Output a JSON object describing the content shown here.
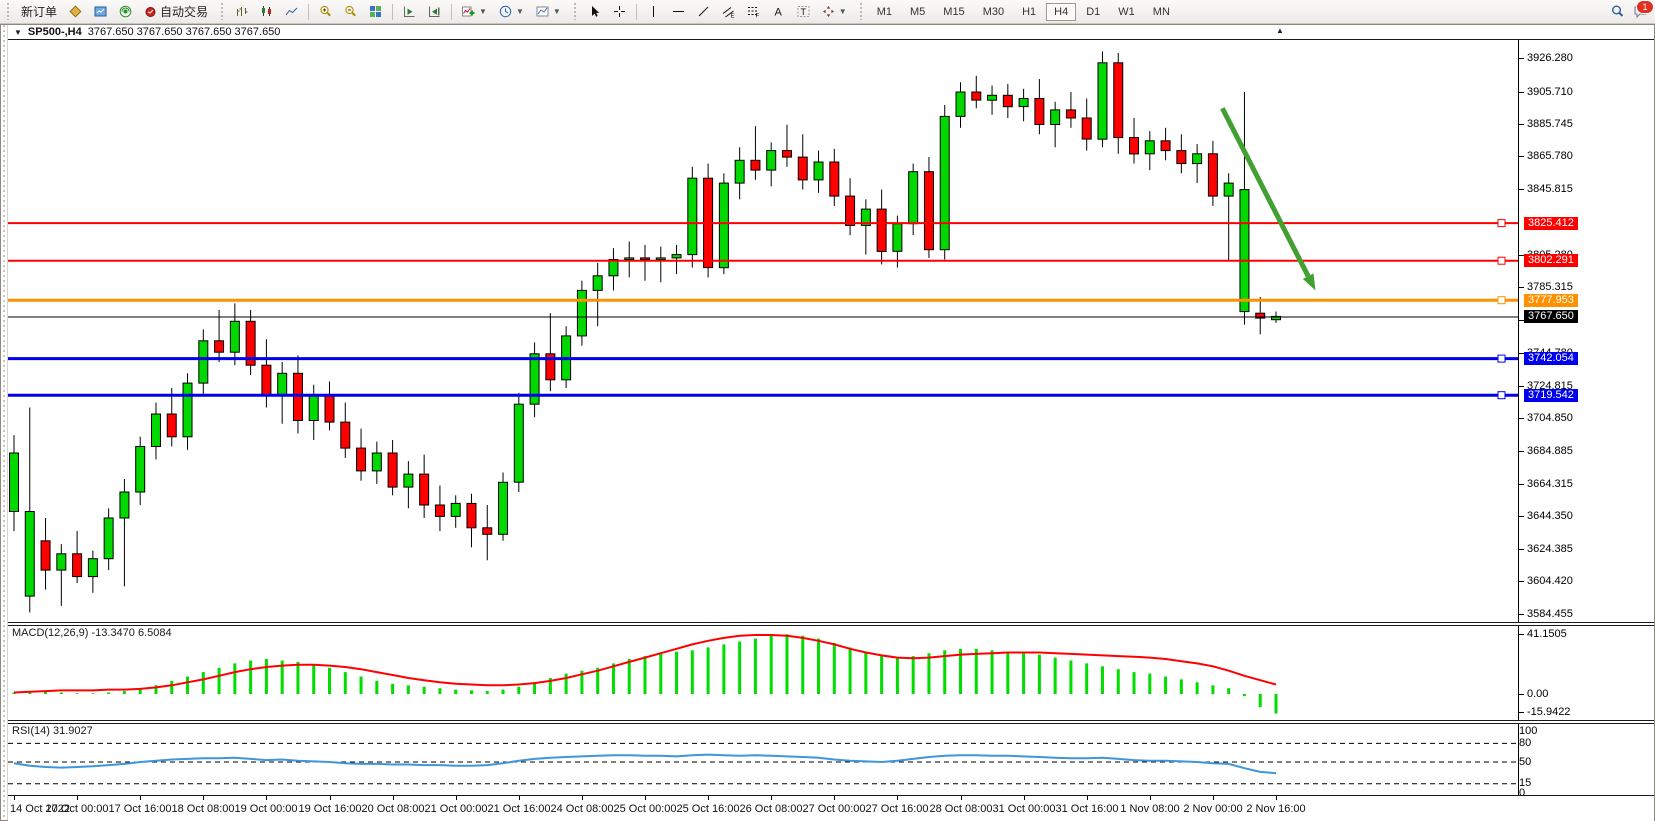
{
  "toolbar": {
    "new_order_label": "新订单",
    "auto_trading_label": "自动交易",
    "timeframes": [
      "M1",
      "M5",
      "M15",
      "M30",
      "H1",
      "H4",
      "D1",
      "W1",
      "MN"
    ],
    "active_timeframe": "H4",
    "notification_badge": "1",
    "icons": [
      "chart-symbols-icon",
      "market-watch-icon",
      "signals-icon",
      "auto-trading-icon",
      "bar-chart-icon",
      "candlestick-chart-icon",
      "line-chart-icon",
      "zoom-in-icon",
      "zoom-out-icon",
      "tile-windows-icon",
      "auto-scroll-icon",
      "chart-shift-icon",
      "add-indicator-icon",
      "periods-clock-icon",
      "template-icon",
      "cursor-icon",
      "crosshair-icon",
      "vertical-line-icon",
      "horizontal-line-icon",
      "trendline-icon",
      "channel-icon",
      "fibonacci-icon",
      "text-icon",
      "text-label-icon",
      "arrows-icon",
      "search-icon",
      "chat-icon"
    ]
  },
  "chart": {
    "symbol_period": "SP500-,H4",
    "ohlc_text": "3767.650 3767.650 3767.650 3767.650",
    "dropdown_glyph": "▼",
    "marker_glyph": "▲"
  },
  "price_axis": {
    "ticks": [
      {
        "label": "3926.280",
        "value": 3926.28
      },
      {
        "label": "3905.710",
        "value": 3905.71
      },
      {
        "label": "3885.745",
        "value": 3885.745
      },
      {
        "label": "3865.780",
        "value": 3865.78
      },
      {
        "label": "3845.815",
        "value": 3845.815
      },
      {
        "label": "3805.280",
        "value": 3805.28
      },
      {
        "label": "3785.315",
        "value": 3785.315
      },
      {
        "label": "3765.350",
        "value": 3765.35
      },
      {
        "label": "3744.780",
        "value": 3744.78
      },
      {
        "label": "3724.815",
        "value": 3724.815
      },
      {
        "label": "3704.850",
        "value": 3704.85
      },
      {
        "label": "3684.885",
        "value": 3684.885
      },
      {
        "label": "3664.315",
        "value": 3664.315
      },
      {
        "label": "3644.350",
        "value": 3644.35
      },
      {
        "label": "3624.385",
        "value": 3624.385
      },
      {
        "label": "3604.420",
        "value": 3604.42
      },
      {
        "label": "3584.455",
        "value": 3584.455
      }
    ]
  },
  "macd_panel": {
    "label": "MACD(12,26,9)",
    "main": "-13.3470",
    "signal": "6.5084",
    "axis": [
      {
        "label": "41.1505",
        "value": 41.1505
      },
      {
        "label": "0.00",
        "value": 0
      },
      {
        "label": "-15.9422",
        "value": -15.9422
      }
    ]
  },
  "rsi_panel": {
    "label": "RSI(14)",
    "value": "31.9027",
    "axis": [
      {
        "label": "100",
        "value": 100
      },
      {
        "label": "80",
        "value": 80
      },
      {
        "label": "50",
        "value": 50
      },
      {
        "label": "15",
        "value": 15
      },
      {
        "label": "0",
        "value": 0
      }
    ]
  },
  "chart_data": {
    "type": "candlestick",
    "symbol": "SP500-",
    "timeframe": "H4",
    "price_range": [
      3580,
      3938
    ],
    "x_labels": [
      "14 Oct 2022",
      "17 Oct 00:00",
      "17 Oct 16:00",
      "18 Oct 08:00",
      "19 Oct 00:00",
      "19 Oct 16:00",
      "20 Oct 08:00",
      "21 Oct 00:00",
      "21 Oct 16:00",
      "24 Oct 08:00",
      "25 Oct 00:00",
      "25 Oct 16:00",
      "26 Oct 08:00",
      "27 Oct 00:00",
      "27 Oct 16:00",
      "28 Oct 08:00",
      "31 Oct 00:00",
      "31 Oct 16:00",
      "1 Nov 08:00",
      "2 Nov 00:00",
      "2 Nov 16:00"
    ],
    "candles_per_label": 4,
    "candles": [
      [
        3648,
        3695,
        3636,
        3684
      ],
      [
        3596,
        3712,
        3586,
        3648
      ],
      [
        3630,
        3644,
        3600,
        3612
      ],
      [
        3612,
        3628,
        3590,
        3622
      ],
      [
        3622,
        3636,
        3604,
        3608
      ],
      [
        3608,
        3624,
        3598,
        3619
      ],
      [
        3619,
        3650,
        3612,
        3644
      ],
      [
        3644,
        3668,
        3602,
        3660
      ],
      [
        3660,
        3694,
        3652,
        3688
      ],
      [
        3688,
        3715,
        3680,
        3708
      ],
      [
        3708,
        3724,
        3688,
        3694
      ],
      [
        3694,
        3733,
        3686,
        3727
      ],
      [
        3727,
        3760,
        3720,
        3753
      ],
      [
        3753,
        3772,
        3740,
        3746
      ],
      [
        3746,
        3776,
        3738,
        3765
      ],
      [
        3765,
        3772,
        3732,
        3738
      ],
      [
        3738,
        3754,
        3712,
        3720
      ],
      [
        3720,
        3740,
        3702,
        3733
      ],
      [
        3733,
        3744,
        3696,
        3704
      ],
      [
        3704,
        3726,
        3692,
        3719
      ],
      [
        3719,
        3728,
        3698,
        3703
      ],
      [
        3703,
        3715,
        3681,
        3687
      ],
      [
        3687,
        3699,
        3667,
        3673
      ],
      [
        3673,
        3691,
        3665,
        3684
      ],
      [
        3684,
        3692,
        3658,
        3663
      ],
      [
        3663,
        3679,
        3650,
        3671
      ],
      [
        3671,
        3683,
        3644,
        3652
      ],
      [
        3652,
        3664,
        3636,
        3645
      ],
      [
        3645,
        3658,
        3638,
        3653
      ],
      [
        3653,
        3659,
        3626,
        3638
      ],
      [
        3638,
        3652,
        3618,
        3634
      ],
      [
        3634,
        3672,
        3630,
        3666
      ],
      [
        3666,
        3721,
        3660,
        3714
      ],
      [
        3714,
        3752,
        3706,
        3745
      ],
      [
        3745,
        3770,
        3722,
        3729
      ],
      [
        3729,
        3762,
        3724,
        3756
      ],
      [
        3756,
        3790,
        3750,
        3784
      ],
      [
        3784,
        3801,
        3762,
        3793
      ],
      [
        3793,
        3810,
        3784,
        3803
      ],
      [
        3803,
        3814,
        3792,
        3804
      ],
      [
        3804,
        3812,
        3790,
        3803
      ],
      [
        3803,
        3811,
        3789,
        3804
      ],
      [
        3804,
        3812,
        3794,
        3806
      ],
      [
        3806,
        3860,
        3798,
        3853
      ],
      [
        3853,
        3862,
        3792,
        3798
      ],
      [
        3798,
        3856,
        3794,
        3850
      ],
      [
        3850,
        3872,
        3840,
        3864
      ],
      [
        3864,
        3885,
        3852,
        3858
      ],
      [
        3858,
        3875,
        3848,
        3870
      ],
      [
        3870,
        3886,
        3860,
        3866
      ],
      [
        3866,
        3880,
        3846,
        3852
      ],
      [
        3852,
        3870,
        3844,
        3863
      ],
      [
        3863,
        3871,
        3836,
        3842
      ],
      [
        3842,
        3853,
        3818,
        3824
      ],
      [
        3824,
        3840,
        3806,
        3834
      ],
      [
        3834,
        3846,
        3800,
        3808
      ],
      [
        3808,
        3830,
        3798,
        3825
      ],
      [
        3825,
        3862,
        3818,
        3857
      ],
      [
        3857,
        3866,
        3804,
        3809
      ],
      [
        3809,
        3898,
        3803,
        3891
      ],
      [
        3891,
        3912,
        3884,
        3906
      ],
      [
        3906,
        3916,
        3896,
        3901
      ],
      [
        3901,
        3910,
        3892,
        3904
      ],
      [
        3904,
        3911,
        3890,
        3897
      ],
      [
        3897,
        3908,
        3888,
        3902
      ],
      [
        3902,
        3914,
        3880,
        3886
      ],
      [
        3886,
        3900,
        3872,
        3895
      ],
      [
        3895,
        3906,
        3884,
        3890
      ],
      [
        3890,
        3902,
        3870,
        3877
      ],
      [
        3877,
        3931,
        3872,
        3924
      ],
      [
        3924,
        3930,
        3868,
        3878
      ],
      [
        3878,
        3890,
        3862,
        3868
      ],
      [
        3868,
        3882,
        3858,
        3876
      ],
      [
        3876,
        3884,
        3864,
        3870
      ],
      [
        3870,
        3880,
        3856,
        3862
      ],
      [
        3862,
        3874,
        3850,
        3868
      ],
      [
        3868,
        3876,
        3836,
        3842
      ],
      [
        3842,
        3856,
        3802,
        3850
      ],
      [
        3771,
        3906,
        3763,
        3846
      ],
      [
        3770,
        3780,
        3757,
        3767
      ],
      [
        3766,
        3771,
        3764,
        3768
      ]
    ],
    "levels": [
      {
        "label": "3825.412",
        "price": 3825.412,
        "color": "#ff0000",
        "width": 2
      },
      {
        "label": "3802.291",
        "price": 3802.291,
        "color": "#ff0000",
        "width": 2
      },
      {
        "label": "3777.953",
        "price": 3777.953,
        "color": "#ff9000",
        "width": 3
      },
      {
        "label": "3767.650",
        "price": 3767.65,
        "color": "#000000",
        "width": 1
      },
      {
        "label": "3742.054",
        "price": 3742.054,
        "color": "#0000ee",
        "width": 3
      },
      {
        "label": "3719.542",
        "price": 3719.542,
        "color": "#0000ee",
        "width": 3
      }
    ],
    "annotation_arrow": {
      "x1_candle": 76.6,
      "price1": 3896,
      "x2_candle": 82.5,
      "price2": 3784,
      "color": "#42a033"
    },
    "indicators": {
      "macd": {
        "label": "MACD(12,26,9)",
        "main_last": -13.347,
        "signal_last": 6.5084,
        "axis_max": 41.1505,
        "axis_min": -15.9422,
        "histogram": [
          1,
          2,
          2,
          1,
          0.5,
          0.5,
          1,
          2,
          4,
          6,
          9,
          12,
          15,
          18,
          21,
          23,
          24,
          23,
          22,
          20,
          18,
          15,
          12,
          9,
          7,
          6,
          5,
          4,
          3,
          2.5,
          2,
          3,
          5,
          8,
          11,
          14,
          16,
          18,
          21,
          24,
          26,
          28,
          29,
          30,
          32,
          34,
          36,
          38,
          40,
          41,
          40,
          38,
          35,
          32,
          29,
          26,
          25,
          26,
          28,
          30,
          31,
          31,
          30,
          29,
          28,
          27,
          25,
          23,
          21,
          19,
          17,
          15,
          14,
          12,
          10,
          8,
          6,
          4,
          -1.5,
          -9,
          -13.347
        ],
        "signal": [
          1,
          1.5,
          2,
          2.5,
          2.5,
          2.5,
          3,
          3,
          3.5,
          4.5,
          6,
          8,
          10,
          12.5,
          15,
          17,
          18.5,
          19.5,
          20,
          20,
          19.5,
          18.5,
          17,
          15,
          13,
          11,
          9.5,
          8,
          7,
          6.5,
          6,
          6,
          6.5,
          7.5,
          9,
          11,
          13.5,
          16,
          19,
          22,
          25,
          28,
          31,
          34,
          36.5,
          38.5,
          40,
          40.5,
          40.5,
          40,
          38.5,
          36.5,
          34,
          31,
          28.5,
          26.5,
          25,
          24.5,
          25,
          26,
          27,
          27.5,
          28,
          28.5,
          28.5,
          28.5,
          28,
          27.5,
          27,
          26.5,
          26,
          25.5,
          25,
          24,
          22.5,
          21,
          19,
          16,
          12.5,
          9.5,
          6.508
        ]
      },
      "rsi": {
        "label": "RSI(14)",
        "last": 31.9027,
        "levels": [
          80,
          50,
          15
        ],
        "range": [
          0,
          100
        ],
        "values": [
          48,
          44,
          42,
          41,
          42,
          43,
          45,
          47,
          50,
          52,
          54,
          55,
          56,
          56,
          57,
          55,
          53,
          54,
          52,
          51,
          50,
          48,
          47,
          47,
          46,
          46,
          45,
          45,
          44,
          44,
          45,
          48,
          52,
          55,
          57,
          58,
          59,
          60,
          61,
          61,
          60,
          60,
          59,
          61,
          62,
          61,
          60,
          61,
          60,
          59,
          58,
          57,
          54,
          52,
          51,
          50,
          52,
          55,
          58,
          60,
          61,
          61,
          60,
          60,
          59,
          58,
          57,
          56,
          56,
          57,
          55,
          53,
          52,
          52,
          51,
          50,
          48,
          47,
          40,
          34,
          31.9
        ]
      }
    }
  }
}
